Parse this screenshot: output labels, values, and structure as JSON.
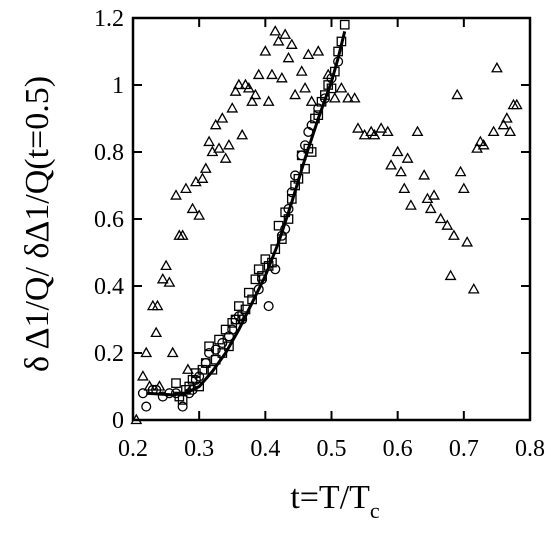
{
  "chart_data": {
    "type": "scatter",
    "title": "",
    "xlabel": "t=T/T",
    "xlabel_subscript": "c",
    "ylabel": "δ Δ1/Q/ δΔ1/Q(t=0.5)",
    "xlim": [
      0.2,
      0.8
    ],
    "ylim": [
      0,
      1.2
    ],
    "x_ticks": [
      0.2,
      0.3,
      0.4,
      0.5,
      0.6,
      0.7,
      0.8
    ],
    "x_tick_labels": [
      "0.2",
      "0.3",
      "0.4",
      "0.5",
      "0.6",
      "0.7",
      "0.8"
    ],
    "y_ticks": [
      0,
      0.2,
      0.4,
      0.6,
      0.8,
      1,
      1.2
    ],
    "y_tick_labels": [
      "0",
      "0.2",
      "0.4",
      "0.6",
      "0.8",
      "1",
      "1.2"
    ],
    "grid": false,
    "legend": "none",
    "series": [
      {
        "marker": "triangle",
        "points": [
          [
            0.205,
            0.0
          ],
          [
            0.215,
            0.13
          ],
          [
            0.22,
            0.2
          ],
          [
            0.225,
            0.1
          ],
          [
            0.23,
            0.34
          ],
          [
            0.235,
            0.26
          ],
          [
            0.237,
            0.34
          ],
          [
            0.24,
            0.1
          ],
          [
            0.245,
            0.42
          ],
          [
            0.25,
            0.46
          ],
          [
            0.255,
            0.41
          ],
          [
            0.26,
            0.2
          ],
          [
            0.265,
            0.67
          ],
          [
            0.27,
            0.55
          ],
          [
            0.275,
            0.55
          ],
          [
            0.28,
            0.69
          ],
          [
            0.283,
            0.15
          ],
          [
            0.29,
            0.63
          ],
          [
            0.295,
            0.71
          ],
          [
            0.3,
            0.61
          ],
          [
            0.305,
            0.72
          ],
          [
            0.31,
            0.75
          ],
          [
            0.315,
            0.83
          ],
          [
            0.32,
            0.8
          ],
          [
            0.325,
            0.88
          ],
          [
            0.33,
            0.81
          ],
          [
            0.335,
            0.9
          ],
          [
            0.34,
            0.78
          ],
          [
            0.345,
            0.82
          ],
          [
            0.35,
            0.93
          ],
          [
            0.355,
            0.98
          ],
          [
            0.36,
            1.0
          ],
          [
            0.365,
            0.85
          ],
          [
            0.37,
            1.0
          ],
          [
            0.375,
            0.99
          ],
          [
            0.38,
            0.95
          ],
          [
            0.385,
            0.97
          ],
          [
            0.39,
            1.03
          ],
          [
            0.4,
            1.1
          ],
          [
            0.405,
            0.95
          ],
          [
            0.41,
            1.03
          ],
          [
            0.415,
            1.16
          ],
          [
            0.42,
            1.13
          ],
          [
            0.425,
            1.02
          ],
          [
            0.43,
            1.15
          ],
          [
            0.435,
            1.08
          ],
          [
            0.44,
            1.12
          ],
          [
            0.445,
            0.97
          ],
          [
            0.455,
            1.04
          ],
          [
            0.46,
            0.99
          ],
          [
            0.465,
            1.09
          ],
          [
            0.47,
            0.95
          ],
          [
            0.48,
            1.1
          ],
          [
            0.495,
            1.03
          ],
          [
            0.505,
            0.96
          ],
          [
            0.515,
            0.99
          ],
          [
            0.525,
            0.96
          ],
          [
            0.535,
            0.96
          ],
          [
            0.54,
            0.87
          ],
          [
            0.55,
            0.85
          ],
          [
            0.56,
            0.86
          ],
          [
            0.565,
            0.85
          ],
          [
            0.575,
            0.87
          ],
          [
            0.585,
            0.86
          ],
          [
            0.59,
            0.76
          ],
          [
            0.6,
            0.8
          ],
          [
            0.605,
            0.74
          ],
          [
            0.61,
            0.69
          ],
          [
            0.615,
            0.78
          ],
          [
            0.62,
            0.64
          ],
          [
            0.63,
            0.86
          ],
          [
            0.64,
            0.73
          ],
          [
            0.645,
            0.66
          ],
          [
            0.65,
            0.63
          ],
          [
            0.655,
            0.67
          ],
          [
            0.665,
            0.6
          ],
          [
            0.675,
            0.58
          ],
          [
            0.68,
            0.43
          ],
          [
            0.685,
            0.55
          ],
          [
            0.69,
            0.97
          ],
          [
            0.695,
            0.74
          ],
          [
            0.7,
            0.69
          ],
          [
            0.705,
            0.53
          ],
          [
            0.715,
            0.39
          ],
          [
            0.72,
            0.81
          ],
          [
            0.725,
            0.83
          ],
          [
            0.73,
            0.82
          ],
          [
            0.745,
            0.86
          ],
          [
            0.75,
            1.05
          ],
          [
            0.76,
            0.88
          ],
          [
            0.765,
            0.9
          ],
          [
            0.77,
            0.86
          ],
          [
            0.775,
            0.94
          ],
          [
            0.78,
            0.94
          ]
        ]
      },
      {
        "marker": "square",
        "points": [
          [
            0.265,
            0.11
          ],
          [
            0.27,
            0.07
          ],
          [
            0.275,
            0.06
          ],
          [
            0.28,
            0.09
          ],
          [
            0.285,
            0.1
          ],
          [
            0.29,
            0.12
          ],
          [
            0.295,
            0.14
          ],
          [
            0.3,
            0.1
          ],
          [
            0.305,
            0.15
          ],
          [
            0.31,
            0.17
          ],
          [
            0.315,
            0.22
          ],
          [
            0.32,
            0.15
          ],
          [
            0.325,
            0.18
          ],
          [
            0.33,
            0.24
          ],
          [
            0.335,
            0.2
          ],
          [
            0.34,
            0.27
          ],
          [
            0.345,
            0.22
          ],
          [
            0.35,
            0.29
          ],
          [
            0.355,
            0.3
          ],
          [
            0.36,
            0.34
          ],
          [
            0.365,
            0.31
          ],
          [
            0.37,
            0.33
          ],
          [
            0.375,
            0.38
          ],
          [
            0.38,
            0.36
          ],
          [
            0.385,
            0.42
          ],
          [
            0.39,
            0.45
          ],
          [
            0.395,
            0.43
          ],
          [
            0.4,
            0.48
          ],
          [
            0.405,
            0.46
          ],
          [
            0.41,
            0.47
          ],
          [
            0.415,
            0.51
          ],
          [
            0.42,
            0.58
          ],
          [
            0.425,
            0.54
          ],
          [
            0.43,
            0.62
          ],
          [
            0.435,
            0.6
          ],
          [
            0.44,
            0.66
          ],
          [
            0.445,
            0.7
          ],
          [
            0.45,
            0.72
          ],
          [
            0.455,
            0.79
          ],
          [
            0.46,
            0.75
          ],
          [
            0.465,
            0.81
          ],
          [
            0.47,
            0.8
          ],
          [
            0.475,
            0.9
          ],
          [
            0.48,
            0.91
          ],
          [
            0.485,
            0.95
          ],
          [
            0.49,
            0.97
          ],
          [
            0.495,
            1.0
          ],
          [
            0.5,
            0.99
          ],
          [
            0.505,
            1.04
          ],
          [
            0.51,
            1.1
          ],
          [
            0.515,
            1.13
          ],
          [
            0.52,
            1.18
          ]
        ]
      },
      {
        "marker": "circle",
        "points": [
          [
            0.215,
            0.08
          ],
          [
            0.22,
            0.04
          ],
          [
            0.23,
            0.09
          ],
          [
            0.235,
            0.09
          ],
          [
            0.245,
            0.07
          ],
          [
            0.255,
            0.08
          ],
          [
            0.265,
            0.08
          ],
          [
            0.275,
            0.04
          ],
          [
            0.285,
            0.08
          ],
          [
            0.29,
            0.09
          ],
          [
            0.295,
            0.12
          ],
          [
            0.3,
            0.13
          ],
          [
            0.31,
            0.17
          ],
          [
            0.315,
            0.2
          ],
          [
            0.325,
            0.21
          ],
          [
            0.335,
            0.23
          ],
          [
            0.345,
            0.25
          ],
          [
            0.35,
            0.27
          ],
          [
            0.355,
            0.3
          ],
          [
            0.36,
            0.31
          ],
          [
            0.365,
            0.3
          ],
          [
            0.39,
            0.39
          ],
          [
            0.395,
            0.42
          ],
          [
            0.405,
            0.34
          ],
          [
            0.415,
            0.45
          ],
          [
            0.425,
            0.55
          ],
          [
            0.43,
            0.57
          ],
          [
            0.435,
            0.63
          ],
          [
            0.44,
            0.68
          ],
          [
            0.445,
            0.73
          ],
          [
            0.455,
            0.79
          ],
          [
            0.46,
            0.82
          ],
          [
            0.465,
            0.86
          ],
          [
            0.47,
            0.88
          ],
          [
            0.48,
            0.93
          ],
          [
            0.49,
            0.96
          ],
          [
            0.5,
            1.02
          ],
          [
            0.51,
            1.07
          ]
        ]
      }
    ],
    "fit_curve": {
      "style": "solid",
      "points": [
        [
          0.22,
          0.08
        ],
        [
          0.26,
          0.075
        ],
        [
          0.28,
          0.08
        ],
        [
          0.3,
          0.1
        ],
        [
          0.32,
          0.145
        ],
        [
          0.34,
          0.2
        ],
        [
          0.36,
          0.27
        ],
        [
          0.38,
          0.35
        ],
        [
          0.4,
          0.43
        ],
        [
          0.42,
          0.53
        ],
        [
          0.44,
          0.65
        ],
        [
          0.46,
          0.78
        ],
        [
          0.48,
          0.9
        ],
        [
          0.5,
          1.01
        ],
        [
          0.51,
          1.08
        ],
        [
          0.52,
          1.16
        ]
      ]
    }
  }
}
